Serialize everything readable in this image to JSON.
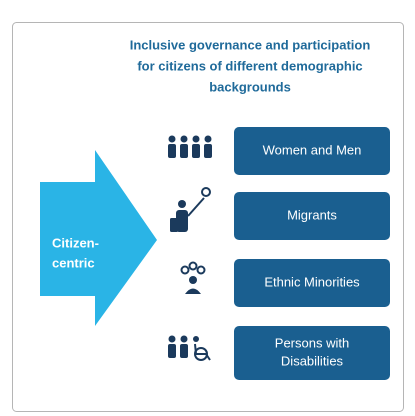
{
  "title": {
    "lines": [
      "Inclusive governance and participation",
      "for citizens of different demographic",
      "backgrounds"
    ]
  },
  "arrow": {
    "lines": [
      "Citizen-",
      "centric"
    ]
  },
  "groups": [
    {
      "lines": [
        "Women and Men"
      ]
    },
    {
      "lines": [
        "Migrants"
      ]
    },
    {
      "lines": [
        "Ethnic Minorities"
      ]
    },
    {
      "lines": [
        "Persons with",
        "Disabilities"
      ]
    }
  ]
}
